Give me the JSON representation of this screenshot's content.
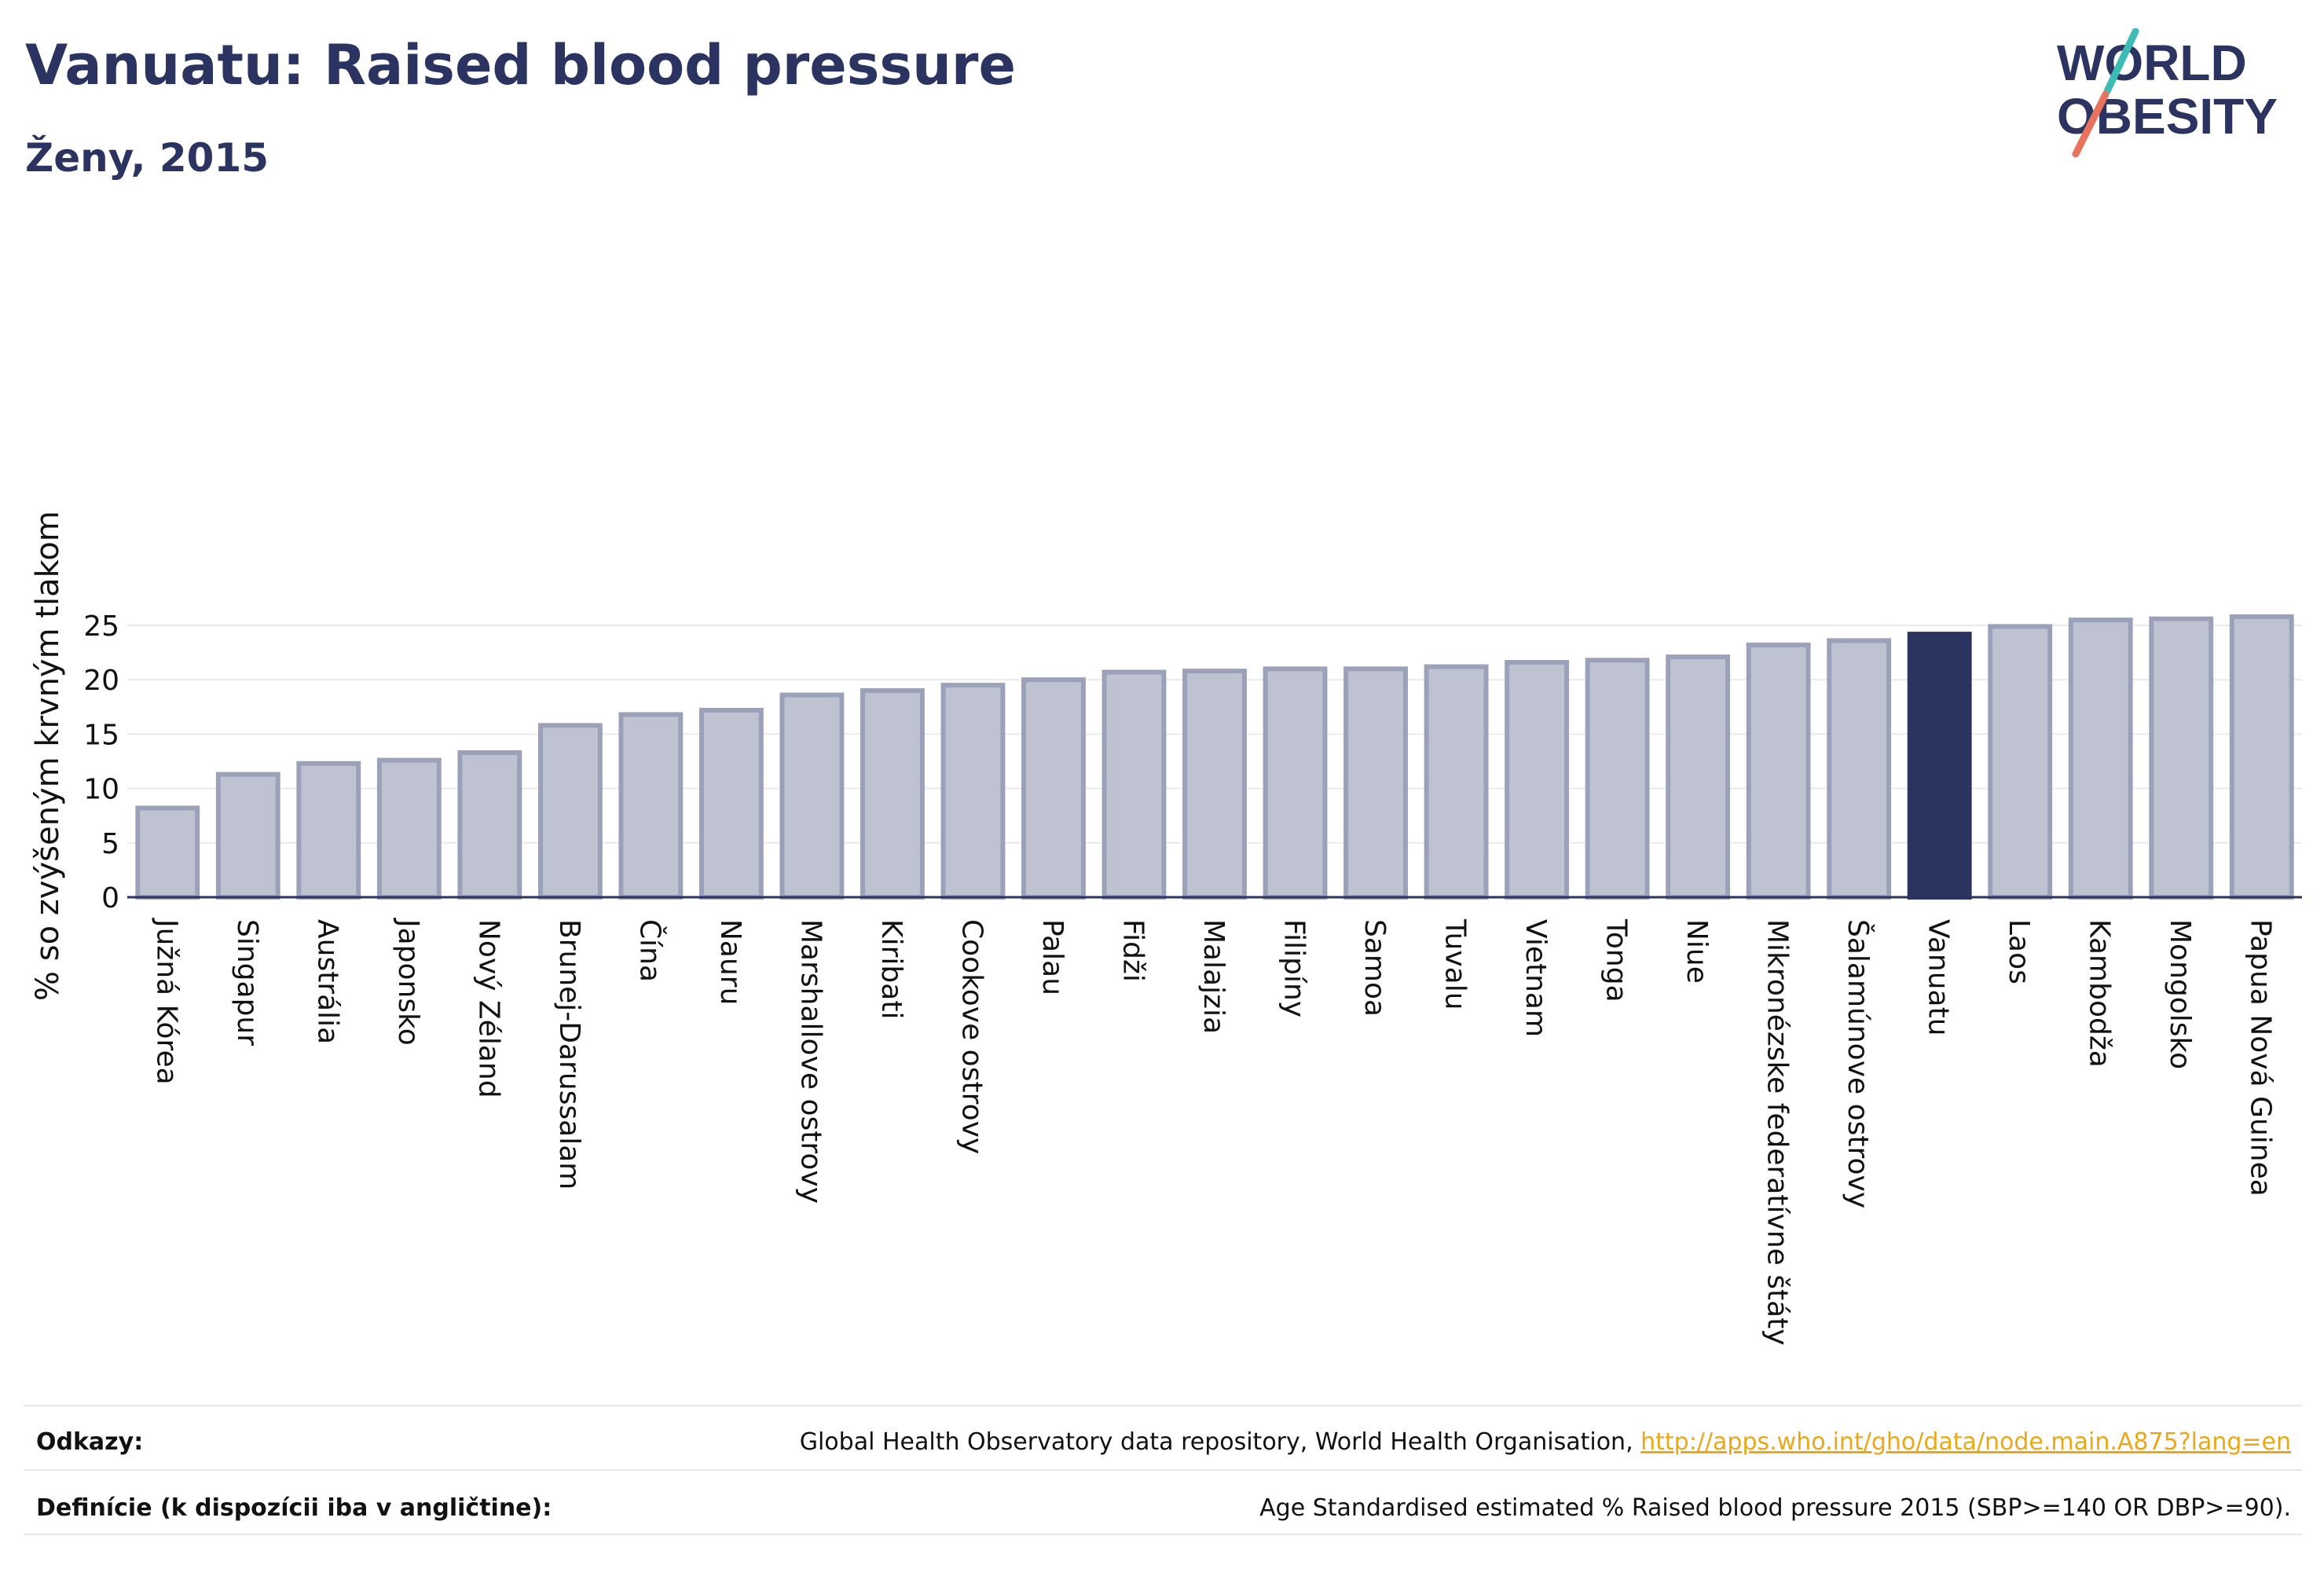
{
  "header": {
    "title": "Vanuatu: Raised blood pressure",
    "subtitle": "Ženy, 2015"
  },
  "logo": {
    "line1": "WORLD",
    "line2": "OBESITY"
  },
  "colors": {
    "highlight": "#2b3460",
    "bar_fill": "#bfc2d0",
    "bar_stroke": "#9ba1b8",
    "grid": "#e9eaef",
    "logo_teal": "#3bbdb6",
    "logo_coral": "#e8735d"
  },
  "chart_data": {
    "type": "bar",
    "ylabel": "% so zvýšeným krvným tlakom",
    "ylim": [
      0,
      26
    ],
    "yticks": [
      0,
      5,
      10,
      15,
      20,
      25
    ],
    "grid": true,
    "highlight_category": "Vanuatu",
    "categories": [
      "Južná Kórea",
      "Singapur",
      "Austrália",
      "Japonsko",
      "Nový Zéland",
      "Brunej-Darussalam",
      "Čína",
      "Nauru",
      "Marshallove ostrovy",
      "Kiribati",
      "Cookove ostrovy",
      "Palau",
      "Fidži",
      "Malajzia",
      "Filipíny",
      "Samoa",
      "Tuvalu",
      "Vietnam",
      "Tonga",
      "Niue",
      "Mikronézske federatívne štáty",
      "Šalamúnove ostrovy",
      "Vanuatu",
      "Laos",
      "Kambodža",
      "Mongolsko",
      "Papua Nová Guinea"
    ],
    "values": [
      8.2,
      11.3,
      12.3,
      12.6,
      13.3,
      15.8,
      16.8,
      17.2,
      18.6,
      19.0,
      19.5,
      20.0,
      20.7,
      20.8,
      21.0,
      21.0,
      21.2,
      21.6,
      21.8,
      22.1,
      23.2,
      23.6,
      24.2,
      24.9,
      25.5,
      25.6,
      25.8
    ]
  },
  "footer": {
    "references_label": "Odkazy:",
    "references_text": "Global Health Observatory data repository, World Health Organisation, ",
    "references_link": "http://apps.who.int/gho/data/node.main.A875?lang=en",
    "definitions_label": "Definície (k dispozícii iba v angličtine):",
    "definitions_text": "Age Standardised estimated % Raised blood pressure 2015 (SBP>=140 OR DBP>=90)."
  }
}
